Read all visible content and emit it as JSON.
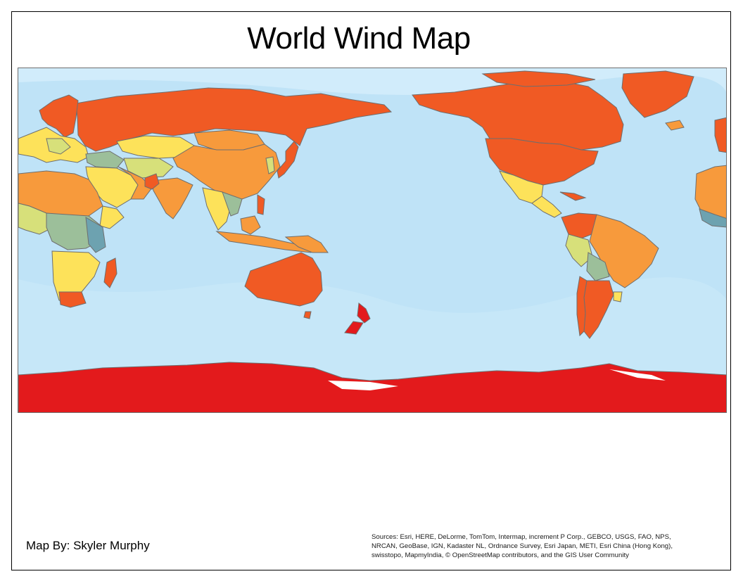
{
  "map": {
    "title": "World Wind Map",
    "author": "Map By: Skyler Murphy",
    "sources_lines": [
      "Sources: Esri, HERE, DeLorme, TomTom, Intermap, increment P Corp., GEBCO, USGS, FAO, NPS,",
      "NRCAN, GeoBase, IGN, Kadaster NL, Ordnance Survey, Esri Japan, METI, Esri China (Hong Kong),",
      "swisstopo, MapmyIndia, © OpenStreetMap contributors, and the GIS User Community"
    ],
    "projection_center": "Pacific (approx. 150°E)",
    "basemap": "ocean",
    "colors": {
      "ocean": "#bfe3f7",
      "ocean_light": "#d6eefb",
      "border": "#6e6e6e",
      "class_1": "#e31a1c",
      "class_2": "#f05a24",
      "class_3": "#f79a3c",
      "class_4": "#fde25a",
      "class_5": "#d7e07a",
      "class_6": "#9cbf9a",
      "class_7": "#6da2b0"
    }
  }
}
